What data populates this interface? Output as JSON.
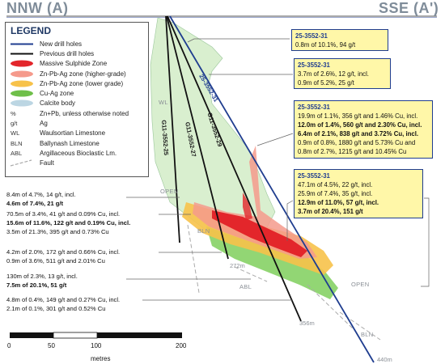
{
  "section": {
    "left_label": "NNW (A)",
    "right_label": "SSE (A')"
  },
  "legend": {
    "title": "LEGEND",
    "items": [
      {
        "label": "New drill holes",
        "symbol": "blue-line",
        "color": "#1f3d8f"
      },
      {
        "label": "Previous drill holes",
        "symbol": "black-line",
        "color": "#111111"
      },
      {
        "label": "Massive Sulphide Zone",
        "symbol": "red-fill",
        "color": "#e3262b"
      },
      {
        "label": "Zn-Pb-Ag zone (higher-grade)",
        "symbol": "pink-fill",
        "color": "#f59a8c"
      },
      {
        "label": "Zn-Pb-Ag zone (lower grade)",
        "symbol": "yellow-fill",
        "color": "#f7c24a"
      },
      {
        "label": "Cu-Ag zone",
        "symbol": "green-fill",
        "color": "#6fbf4a"
      },
      {
        "label": "Calcite body",
        "symbol": "lightblue-fill",
        "color": "#bcd6e3"
      }
    ],
    "abbreviations": [
      {
        "abbr": "%",
        "label": "Zn+Pb, unless otherwise noted"
      },
      {
        "abbr": "g/t",
        "label": "Ag"
      },
      {
        "abbr": "WL",
        "label": "Waulsortian Limestone"
      },
      {
        "abbr": "BLN",
        "label": "Ballynash Limestone"
      },
      {
        "abbr": "ABL",
        "label": "Argillaceous Bioclastic Lm."
      },
      {
        "abbr": "",
        "label": "Fault"
      }
    ]
  },
  "assay_boxes": [
    {
      "hole_id": "25-3552-31",
      "lines": [
        {
          "text": "0.8m of 10.1%, 94 g/t",
          "bold": false
        }
      ]
    },
    {
      "hole_id": "25-3552-31",
      "lines": [
        {
          "text": "3.7m of 2.6%, 12 g/t, incl.",
          "bold": false
        },
        {
          "text": "0.9m of 5.2%, 25 g/t",
          "bold": false
        }
      ]
    },
    {
      "hole_id": "25-3552-31",
      "lines": [
        {
          "text": "19.9m of 1.1%, 356 g/t and 1.46% Cu, incl.",
          "bold": false
        },
        {
          "text": "12.0m of 1.4%, 560 g/t and 2.30% Cu, incl.",
          "bold": true
        },
        {
          "text": "6.4m of 2.1%, 838 g/t and 3.72% Cu, incl.",
          "bold": true
        },
        {
          "text": "0.9m of 0.8%, 1880 g/t and 5.73% Cu and",
          "bold": false
        },
        {
          "text": "0.8m of 2.7%, 1215 g/t and 10.45% Cu",
          "bold": false
        }
      ]
    },
    {
      "hole_id": "25-3552-31",
      "lines": [
        {
          "text": "47.1m of 4.5%, 22 g/t, incl.",
          "bold": false
        },
        {
          "text": "25.9m of 7.4%, 35 g/t, incl.",
          "bold": false
        },
        {
          "text": "12.9m of 11.0%, 57 g/t, incl.",
          "bold": true
        },
        {
          "text": "3.7m of 20.4%, 151 g/t",
          "bold": true
        }
      ]
    }
  ],
  "left_intercepts": [
    {
      "text": "8.4m of 4.7%, 14 g/t, incl.",
      "bold": false
    },
    {
      "text": "4.6m of 7.4%, 21 g/t",
      "bold": true
    },
    {
      "text": "70.5m of 3.4%, 41 g/t and 0.09% Cu, incl.",
      "bold": false
    },
    {
      "text": "15.6m of 11.6%, 122 g/t and 0.19% Cu, incl.",
      "bold": true
    },
    {
      "text": "3.5m of 21.3%, 395 g/t and 0.73% Cu",
      "bold": false
    },
    {
      "text": "4.2m of 2.0%, 172 g/t and 0.66% Cu, incl.",
      "bold": false
    },
    {
      "text": "0.9m of 3.6%, 511 g/t and 2.01% Cu",
      "bold": false
    },
    {
      "text": "130m of 2.3%, 13 g/t, incl.",
      "bold": false
    },
    {
      "text": "7.5m of 20.1%, 51 g/t",
      "bold": true
    },
    {
      "text": "4.8m of 0.4%, 149 g/t and 0.27% Cu, incl.",
      "bold": false
    },
    {
      "text": "2.1m of 0.1%, 301 g/t and 0.52% Cu",
      "bold": false
    }
  ],
  "drill_holes": {
    "new": [
      "25-3552-31"
    ],
    "previous": [
      "G11-3552-25",
      "G11-3552-27",
      "G11-3552-29"
    ]
  },
  "region_labels": {
    "wl": "WL",
    "open1": "OPEN",
    "open2": "OPEN",
    "bln1": "BLN",
    "abl": "ABL",
    "bln2": "BLN"
  },
  "depth_labels": [
    "272m",
    "356m",
    "440m"
  ],
  "scale_bar": {
    "ticks": [
      "0",
      "50",
      "100",
      "200"
    ],
    "unit": "metres"
  }
}
